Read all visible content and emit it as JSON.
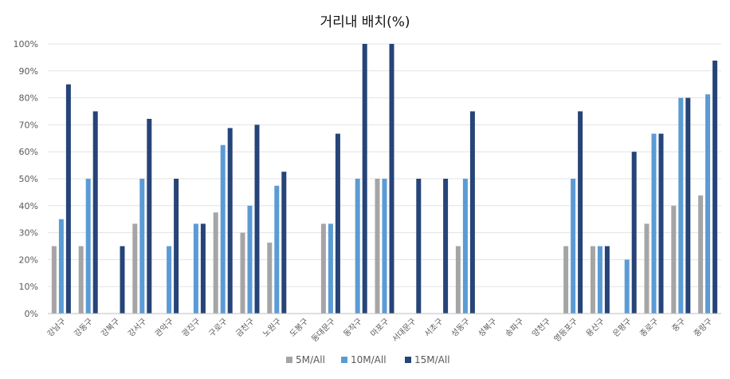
{
  "chart_data": {
    "type": "bar",
    "title": "거리내 배치(%)",
    "xlabel": "",
    "ylabel": "",
    "ylim": [
      0,
      100
    ],
    "y_ticks": [
      "0%",
      "10%",
      "20%",
      "30%",
      "40%",
      "50%",
      "60%",
      "70%",
      "80%",
      "90%",
      "100%"
    ],
    "grid": true,
    "legend_position": "bottom-center",
    "categories": [
      "강남구",
      "강동구",
      "강북구",
      "강서구",
      "관악구",
      "광진구",
      "구로구",
      "금천구",
      "노원구",
      "도봉구",
      "동대문구",
      "동작구",
      "마포구",
      "서대문구",
      "서초구",
      "성동구",
      "성북구",
      "송파구",
      "양천구",
      "영등포구",
      "용산구",
      "은평구",
      "종로구",
      "중구",
      "중랑구"
    ],
    "series": [
      {
        "name": "5M/All",
        "color": "#a5a5a5",
        "values": [
          25,
          25,
          0,
          33.3,
          0,
          0,
          37.5,
          30,
          26.3,
          0,
          33.3,
          0,
          50,
          0,
          0,
          25,
          0,
          0,
          0,
          25,
          25,
          0,
          33.3,
          40,
          43.8
        ]
      },
      {
        "name": "10M/All",
        "color": "#5b9bd5",
        "values": [
          35,
          50,
          0,
          50,
          25,
          33.3,
          62.5,
          40,
          47.4,
          0,
          33.3,
          50,
          50,
          0,
          0,
          50,
          0,
          0,
          0,
          50,
          25,
          20,
          66.7,
          80,
          81.3
        ]
      },
      {
        "name": "15M/All",
        "color": "#264478",
        "values": [
          85,
          75,
          25,
          72.2,
          50,
          33.3,
          68.8,
          70,
          52.6,
          0,
          66.7,
          100,
          100,
          50,
          50,
          75,
          0,
          0,
          0,
          75,
          25,
          60,
          66.7,
          80,
          93.8
        ]
      }
    ]
  }
}
